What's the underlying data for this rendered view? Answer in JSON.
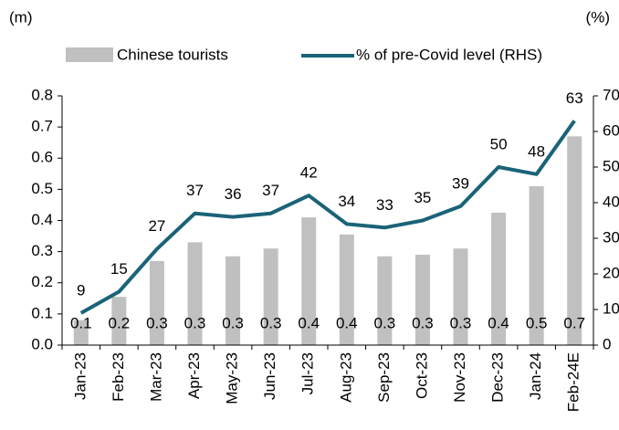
{
  "chart_data": {
    "type": "bar-line",
    "y_label": "(m)",
    "y2_label": "(%)",
    "categories": [
      "Jan-23",
      "Feb-23",
      "Mar-23",
      "Apr-23",
      "May-23",
      "Jun-23",
      "Jul-23",
      "Aug-23",
      "Sep-23",
      "Oct-23",
      "Nov-23",
      "Dec-23",
      "Jan-24",
      "Feb-24E"
    ],
    "series": [
      {
        "name": "Chinese tourists",
        "type": "bar",
        "color": "#c0c0c0",
        "values": [
          0.08,
          0.155,
          0.27,
          0.33,
          0.285,
          0.31,
          0.41,
          0.355,
          0.285,
          0.29,
          0.31,
          0.425,
          0.51,
          0.67
        ],
        "value_labels": [
          "0.1",
          "0.2",
          "0.3",
          "0.3",
          "0.3",
          "0.3",
          "0.4",
          "0.4",
          "0.3",
          "0.3",
          "0.3",
          "0.4",
          "0.5",
          "0.7"
        ]
      },
      {
        "name": "% of pre-Covid level (RHS)",
        "type": "line",
        "axis": "y2",
        "color": "#1a6378",
        "values": [
          9,
          15,
          27,
          37,
          36,
          37,
          42,
          34,
          33,
          35,
          39,
          50,
          48,
          63
        ]
      }
    ],
    "ylim": [
      0,
      0.8
    ],
    "yticks": [
      {
        "value": 0,
        "label": "0.0"
      },
      0.1,
      0.2,
      0.3,
      0.4,
      0.5,
      0.6,
      0.7,
      0.8
    ],
    "y2lim": [
      0,
      70
    ],
    "y2ticks": [
      0,
      10,
      20,
      30,
      40,
      50,
      60,
      70
    ],
    "legend": "top"
  }
}
